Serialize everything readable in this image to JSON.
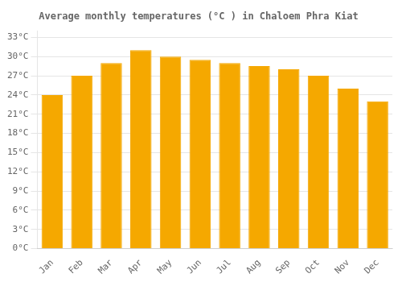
{
  "chart_data": {
    "type": "bar",
    "title": "Average monthly temperatures (°C ) in Chaloem Phra Kiat",
    "categories": [
      "Jan",
      "Feb",
      "Mar",
      "Apr",
      "May",
      "Jun",
      "Jul",
      "Aug",
      "Sep",
      "Oct",
      "Nov",
      "Dec"
    ],
    "values": [
      24,
      27,
      29,
      31,
      30,
      29.5,
      29,
      28.5,
      28,
      27,
      25,
      23
    ],
    "color": "#F5A800",
    "ylim": [
      0,
      34
    ],
    "yticks": [
      {
        "value": 0,
        "label": "0°C"
      },
      {
        "value": 3,
        "label": "3°C"
      },
      {
        "value": 6,
        "label": "6°C"
      },
      {
        "value": 9,
        "label": "9°C"
      },
      {
        "value": 12,
        "label": "12°C"
      },
      {
        "value": 15,
        "label": "15°C"
      },
      {
        "value": 18,
        "label": "18°C"
      },
      {
        "value": 21,
        "label": "21°C"
      },
      {
        "value": 24,
        "label": "24°C"
      },
      {
        "value": 27,
        "label": "27°C"
      },
      {
        "value": 30,
        "label": "30°C"
      },
      {
        "value": 33,
        "label": "33°C"
      }
    ],
    "grid": true
  }
}
